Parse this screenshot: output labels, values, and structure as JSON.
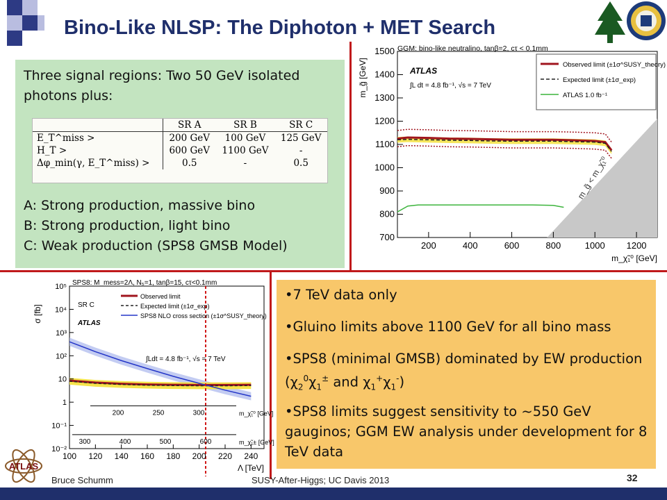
{
  "slide": {
    "title": "Bino-Like NLSP: The Diphoton + MET Search",
    "page_number": "32",
    "footer_author": "Bruce Schumm",
    "footer_event": "SUSY-After-Higgs; UC Davis 2013",
    "colors": {
      "title": "#1f2f6b",
      "divider": "#c0191b",
      "green_panel": "#c3e4c0",
      "orange_panel": "#f8c76a",
      "bar_blue": "#1f2f6b"
    }
  },
  "signal_box": {
    "intro": "Three signal regions: Two 50 GeV isolated photons plus:",
    "table": {
      "headers": [
        "",
        "SR A",
        "SR B",
        "SR C"
      ],
      "rows": [
        {
          "label": "E_T^miss >",
          "values": [
            "200 GeV",
            "100 GeV",
            "125 GeV"
          ]
        },
        {
          "label": "H_T >",
          "values": [
            "600 GeV",
            "1100 GeV",
            "-"
          ]
        },
        {
          "label": "Δφ_min(γ, E_T^miss) >",
          "values": [
            "0.5",
            "-",
            "0.5"
          ]
        }
      ]
    },
    "line_a": "A: Strong production, massive bino",
    "line_b": "B: Strong production, light bino",
    "line_c": "C: Weak production (SPS8 GMSB Model)"
  },
  "bullets": {
    "b1": "7 TeV data only",
    "b2": "Gluino limits above 1100 GeV for all bino mass",
    "b3_pre": "SPS8 (minimal GMSB) dominated by EW production (",
    "b3_mid": " and ",
    "b3_post": ")",
    "b3_chi20": "χ",
    "b4": "SPS8 limits suggest sensitivity to ~550 GeV gauginos; GGM EW analysis under development for 8 TeV data"
  },
  "chart_data": [
    {
      "type": "line",
      "title": "GGM: bino-like neutralino, tanβ=2, cτ < 0.1mm",
      "annotation_experiment": "ATLAS",
      "annotation_lumi": "∫L dt = 4.8 fb⁻¹, √s = 7 TeV",
      "annotation_diagonal": "m_g̃ < m_χ̃₁⁰",
      "xlabel": "m_χ̃₁⁰ [GeV]",
      "ylabel": "m_g̃ [GeV]",
      "xlim": [
        50,
        1300
      ],
      "ylim": [
        700,
        1500
      ],
      "xticks": [
        200,
        400,
        600,
        800,
        1000,
        1200
      ],
      "yticks": [
        700,
        800,
        900,
        1000,
        1100,
        1200,
        1300,
        1400,
        1500
      ],
      "legend_position": "top-right",
      "series": [
        {
          "name": "Observed limit (±1σ^SUSY_theory)",
          "color": "#a0141e",
          "x": [
            50,
            100,
            200,
            300,
            400,
            500,
            600,
            700,
            800,
            900,
            1000,
            1050,
            1080
          ],
          "y": [
            1125,
            1130,
            1128,
            1125,
            1124,
            1122,
            1120,
            1120,
            1120,
            1118,
            1115,
            1110,
            1075
          ]
        },
        {
          "name": "Expected limit (±1σ_exp)",
          "color": "#222222",
          "x": [
            50,
            100,
            200,
            300,
            400,
            500,
            600,
            700,
            800,
            900,
            1000,
            1050,
            1080
          ],
          "y": [
            1120,
            1122,
            1120,
            1118,
            1117,
            1115,
            1114,
            1114,
            1114,
            1112,
            1110,
            1105,
            1070
          ]
        },
        {
          "name": "ATLAS 1.0 fb⁻¹",
          "color": "#3cb43c",
          "x": [
            50,
            100,
            150,
            200,
            300,
            400,
            500,
            600,
            700,
            800,
            850
          ],
          "y": [
            810,
            835,
            840,
            840,
            840,
            840,
            840,
            840,
            840,
            838,
            830
          ]
        }
      ]
    },
    {
      "type": "line",
      "title": "SPS8: M_mess=2Λ, N₅=1, tanβ=15, cτ<0.1mm",
      "annotation_region": "SR C",
      "annotation_experiment": "ATLAS",
      "annotation_lumi": "∫Ldt = 4.8 fb⁻¹, √s = 7 TeV",
      "xlabel": "Λ [TeV]",
      "ylabel": "σ [fb]",
      "y_scale": "log",
      "xlim": [
        100,
        250
      ],
      "ylim": [
        0.01,
        100000
      ],
      "xticks": [
        100,
        120,
        140,
        160,
        180,
        200,
        220,
        240
      ],
      "yticks": [
        0.01,
        0.1,
        1,
        10,
        100,
        1000,
        10000,
        100000
      ],
      "ytick_labels": [
        "10⁻²",
        "10⁻¹",
        "1",
        "10",
        "10²",
        "10³",
        "10⁴",
        "10⁵"
      ],
      "secondary_axis_1": {
        "label": "m_χ̃₁⁰ [GeV]",
        "ticks": [
          200,
          250,
          300
        ]
      },
      "secondary_axis_2": {
        "label": "m_χ̃₁± [GeV]",
        "ticks": [
          300,
          400,
          500,
          600
        ]
      },
      "legend_position": "top-right",
      "series": [
        {
          "name": "Observed limit",
          "color": "#a0141e",
          "x": [
            100,
            120,
            140,
            160,
            180,
            200,
            220,
            240
          ],
          "y": [
            8.5,
            7.0,
            6.2,
            5.8,
            5.6,
            5.5,
            5.5,
            5.6
          ]
        },
        {
          "name": "Expected limit (±1σ_exp)",
          "color": "#222222",
          "x": [
            100,
            120,
            140,
            160,
            180,
            200,
            220,
            240
          ],
          "y": [
            8.0,
            6.5,
            5.8,
            5.4,
            5.2,
            5.1,
            5.1,
            5.2
          ]
        },
        {
          "name": "SPS8 NLO cross section (±1σ^SUSY_theory)",
          "color": "#2436c8",
          "x": [
            100,
            120,
            140,
            160,
            180,
            200,
            220,
            240
          ],
          "y": [
            400,
            150,
            62,
            28,
            13,
            6.5,
            3.3,
            1.8
          ]
        }
      ],
      "vertical_line_x": 205
    }
  ]
}
